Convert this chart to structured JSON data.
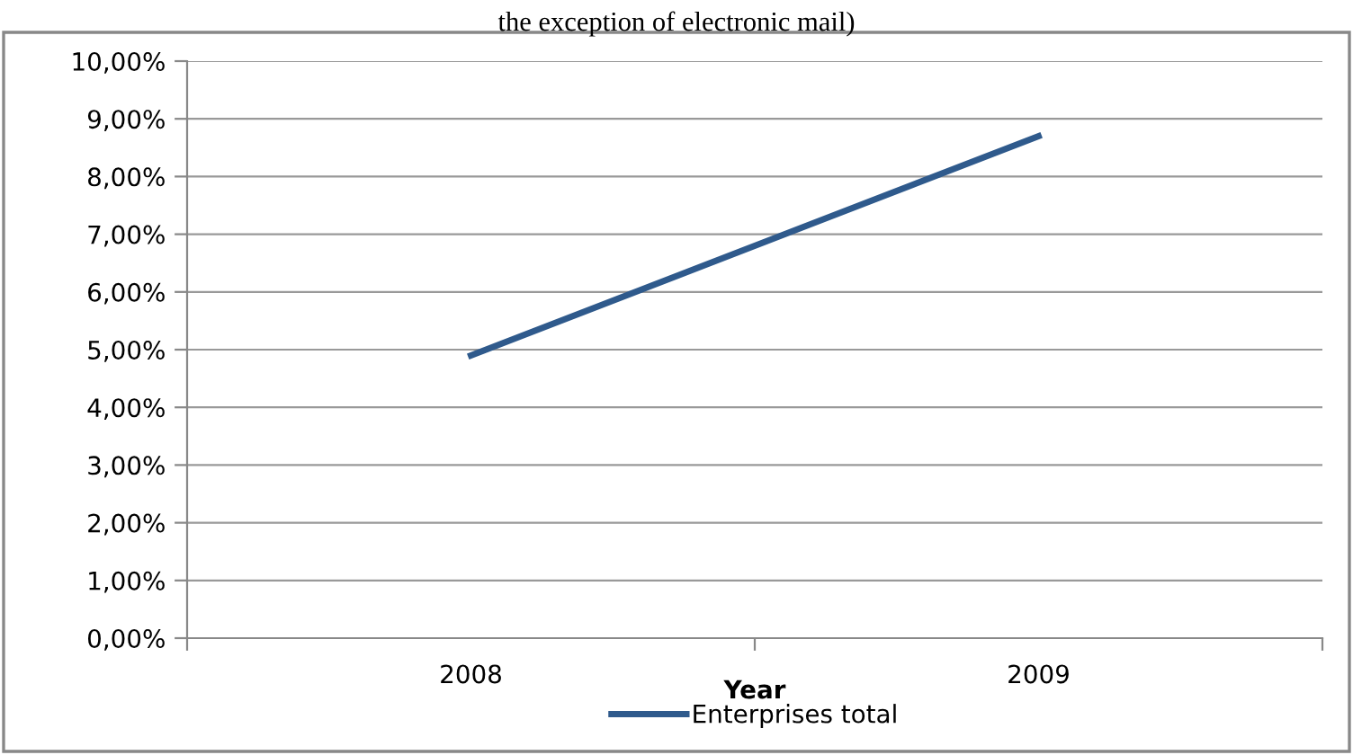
{
  "chart_data": {
    "type": "line",
    "title": "the exception of electronic mail)",
    "xlabel": "Year",
    "categories": [
      "2008",
      "2009"
    ],
    "series": [
      {
        "name": "Enterprises total",
        "color": "#2f5a8c",
        "values": [
          4.9,
          8.7
        ]
      }
    ],
    "ylim": [
      0,
      10
    ],
    "yticks": [
      {
        "value": 0,
        "label": "0,00%"
      },
      {
        "value": 1,
        "label": "1,00%"
      },
      {
        "value": 2,
        "label": "2,00%"
      },
      {
        "value": 3,
        "label": "3,00%"
      },
      {
        "value": 4,
        "label": "4,00%"
      },
      {
        "value": 5,
        "label": "5,00%"
      },
      {
        "value": 6,
        "label": "6,00%"
      },
      {
        "value": 7,
        "label": "7,00%"
      },
      {
        "value": 8,
        "label": "8,00%"
      },
      {
        "value": 9,
        "label": "9,00%"
      },
      {
        "value": 10,
        "label": "10,00%"
      }
    ],
    "grid": "y",
    "legend": "bottom",
    "marker": "none",
    "line_style": "solid"
  }
}
